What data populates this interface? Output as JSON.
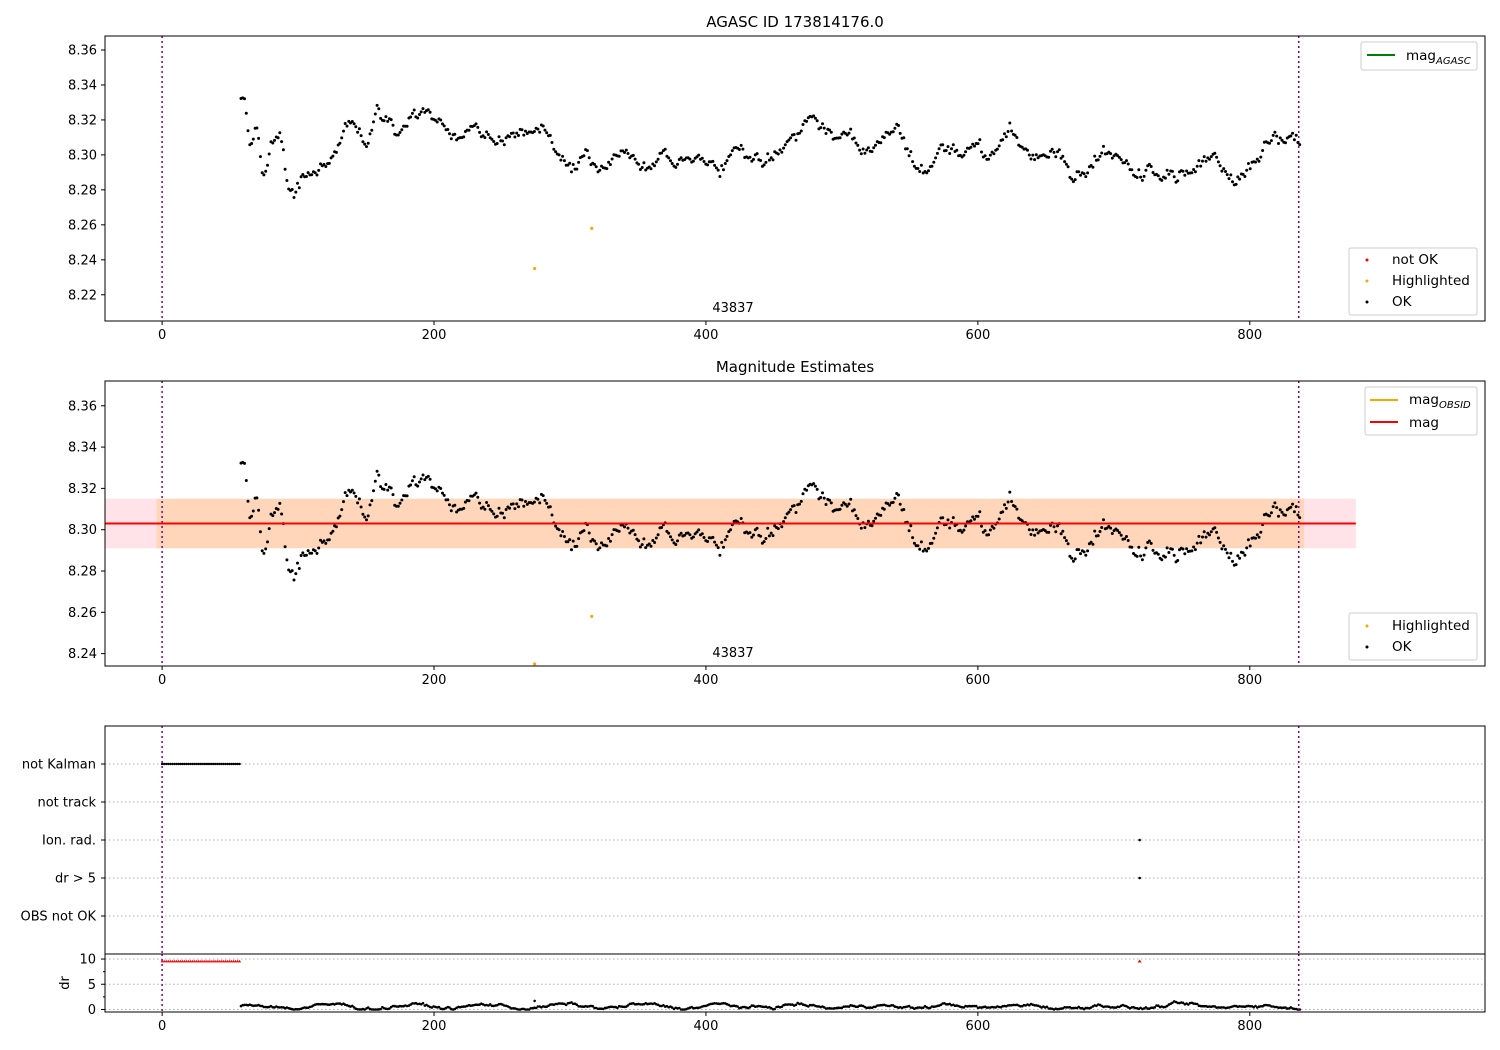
{
  "chart_data": [
    {
      "type": "scatter",
      "title": "AGASC ID 173814176.0",
      "xlim": [
        -42,
        973
      ],
      "ylim": [
        8.205,
        8.368
      ],
      "xticks": [
        0,
        200,
        400,
        600,
        800
      ],
      "yticks": [
        8.22,
        8.24,
        8.26,
        8.28,
        8.3,
        8.32,
        8.34,
        8.36
      ],
      "vlines": [
        0,
        836
      ],
      "annotation": {
        "text": "43837",
        "x": 418,
        "y": 8.21
      },
      "legend_lines": [
        {
          "label": "mag",
          "sub": "AGASC",
          "color": "#008000"
        }
      ],
      "legend_points": [
        {
          "label": "not OK",
          "color": "#ff0000"
        },
        {
          "label": "Highlighted",
          "color": "#ffa500"
        },
        {
          "label": "OK",
          "color": "#000000"
        }
      ],
      "highlighted_points": [
        [
          274,
          8.235
        ],
        [
          316,
          8.258
        ]
      ]
    },
    {
      "type": "scatter",
      "title": "Magnitude Estimates",
      "xlim": [
        -42,
        973
      ],
      "ylim": [
        8.234,
        8.372
      ],
      "xticks": [
        0,
        200,
        400,
        600,
        800
      ],
      "yticks": [
        8.24,
        8.26,
        8.28,
        8.3,
        8.32,
        8.34,
        8.36
      ],
      "vlines": [
        0,
        836
      ],
      "mag": 8.303,
      "mag_band": [
        8.291,
        8.315
      ],
      "band_x": [
        -42,
        878
      ],
      "annotation": {
        "text": "43837",
        "x": 418,
        "y": 8.238
      },
      "legend_lines": [
        {
          "label": "mag",
          "sub": "OBSID",
          "color": "#ffa500"
        },
        {
          "label": "mag",
          "sub": "",
          "color": "#ff0000"
        }
      ],
      "legend_points": [
        {
          "label": "Highlighted",
          "color": "#ffa500"
        },
        {
          "label": "OK",
          "color": "#000000"
        }
      ],
      "highlighted_points": [
        [
          274,
          8.235
        ],
        [
          316,
          8.258
        ]
      ]
    },
    {
      "type": "scatter",
      "title": "",
      "xlim": [
        -42,
        973
      ],
      "xticks": [
        0,
        200,
        400,
        600,
        800
      ],
      "flag_categories": [
        "not Kalman",
        "not track",
        "Ion. rad.",
        "dr > 5",
        "OBS not OK"
      ],
      "flags": {
        "not Kalman": [
          0,
          58
        ],
        "ion_rad_x": 719,
        "dr_gt_5_x": 719
      },
      "dr_yticks": [
        0,
        5,
        10
      ],
      "dr_ylabel": "dr"
    }
  ],
  "lightcurve_anchors": [
    [
      58,
      8.33
    ],
    [
      61,
      8.332
    ],
    [
      65,
      8.305
    ],
    [
      70,
      8.315
    ],
    [
      74,
      8.285
    ],
    [
      80,
      8.305
    ],
    [
      86,
      8.314
    ],
    [
      92,
      8.282
    ],
    [
      96,
      8.276
    ],
    [
      104,
      8.29
    ],
    [
      112,
      8.288
    ],
    [
      120,
      8.296
    ],
    [
      128,
      8.302
    ],
    [
      135,
      8.316
    ],
    [
      142,
      8.318
    ],
    [
      150,
      8.305
    ],
    [
      158,
      8.322
    ],
    [
      166,
      8.32
    ],
    [
      172,
      8.315
    ],
    [
      180,
      8.318
    ],
    [
      188,
      8.323
    ],
    [
      196,
      8.327
    ],
    [
      204,
      8.318
    ],
    [
      212,
      8.312
    ],
    [
      222,
      8.313
    ],
    [
      232,
      8.316
    ],
    [
      242,
      8.308
    ],
    [
      252,
      8.31
    ],
    [
      262,
      8.312
    ],
    [
      270,
      8.315
    ],
    [
      278,
      8.318
    ],
    [
      286,
      8.306
    ],
    [
      296,
      8.298
    ],
    [
      304,
      8.294
    ],
    [
      312,
      8.3
    ],
    [
      322,
      8.292
    ],
    [
      330,
      8.298
    ],
    [
      340,
      8.3
    ],
    [
      350,
      8.296
    ],
    [
      360,
      8.292
    ],
    [
      370,
      8.3
    ],
    [
      380,
      8.296
    ],
    [
      390,
      8.298
    ],
    [
      400,
      8.296
    ],
    [
      410,
      8.29
    ],
    [
      418,
      8.3
    ],
    [
      426,
      8.304
    ],
    [
      434,
      8.3
    ],
    [
      444,
      8.295
    ],
    [
      452,
      8.3
    ],
    [
      460,
      8.306
    ],
    [
      468,
      8.312
    ],
    [
      476,
      8.323
    ],
    [
      484,
      8.317
    ],
    [
      494,
      8.31
    ],
    [
      504,
      8.314
    ],
    [
      514,
      8.303
    ],
    [
      524,
      8.302
    ],
    [
      534,
      8.31
    ],
    [
      542,
      8.316
    ],
    [
      548,
      8.302
    ],
    [
      556,
      8.292
    ],
    [
      564,
      8.29
    ],
    [
      572,
      8.305
    ],
    [
      580,
      8.306
    ],
    [
      590,
      8.3
    ],
    [
      600,
      8.302
    ],
    [
      610,
      8.3
    ],
    [
      618,
      8.306
    ],
    [
      624,
      8.315
    ],
    [
      632,
      8.306
    ],
    [
      640,
      8.3
    ],
    [
      650,
      8.3
    ],
    [
      660,
      8.302
    ],
    [
      668,
      8.287
    ],
    [
      676,
      8.293
    ],
    [
      686,
      8.298
    ],
    [
      696,
      8.3
    ],
    [
      706,
      8.296
    ],
    [
      716,
      8.29
    ],
    [
      726,
      8.292
    ],
    [
      736,
      8.29
    ],
    [
      746,
      8.288
    ],
    [
      756,
      8.29
    ],
    [
      764,
      8.292
    ],
    [
      772,
      8.298
    ],
    [
      780,
      8.293
    ],
    [
      788,
      8.284
    ],
    [
      796,
      8.292
    ],
    [
      804,
      8.296
    ],
    [
      812,
      8.305
    ],
    [
      820,
      8.31
    ],
    [
      828,
      8.308
    ],
    [
      836,
      8.308
    ]
  ]
}
